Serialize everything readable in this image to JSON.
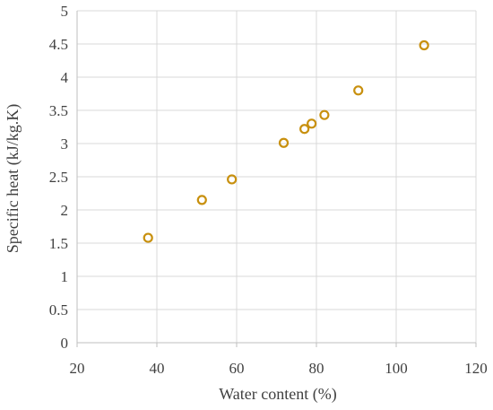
{
  "chart_data": {
    "type": "scatter",
    "title": "",
    "xlabel": "Water content (%)",
    "ylabel": "Specific heat (kJ/kg.K)",
    "xlim": [
      20,
      120
    ],
    "ylim": [
      0,
      5
    ],
    "x_ticks": [
      "20",
      "40",
      "60",
      "80",
      "100",
      "120"
    ],
    "y_ticks": [
      "0",
      "0.5",
      "1",
      "1.5",
      "2",
      "2.5",
      "3",
      "3.5",
      "4",
      "4.5",
      "5"
    ],
    "grid": true,
    "legend": "none",
    "marker_color": "#C8900E",
    "points": [
      {
        "x": 37.8,
        "y": 1.58
      },
      {
        "x": 51.3,
        "y": 2.15
      },
      {
        "x": 58.8,
        "y": 2.46
      },
      {
        "x": 71.8,
        "y": 3.01
      },
      {
        "x": 77.0,
        "y": 3.22
      },
      {
        "x": 78.8,
        "y": 3.3
      },
      {
        "x": 82.0,
        "y": 3.43
      },
      {
        "x": 90.5,
        "y": 3.8
      },
      {
        "x": 107.0,
        "y": 4.48
      }
    ]
  }
}
